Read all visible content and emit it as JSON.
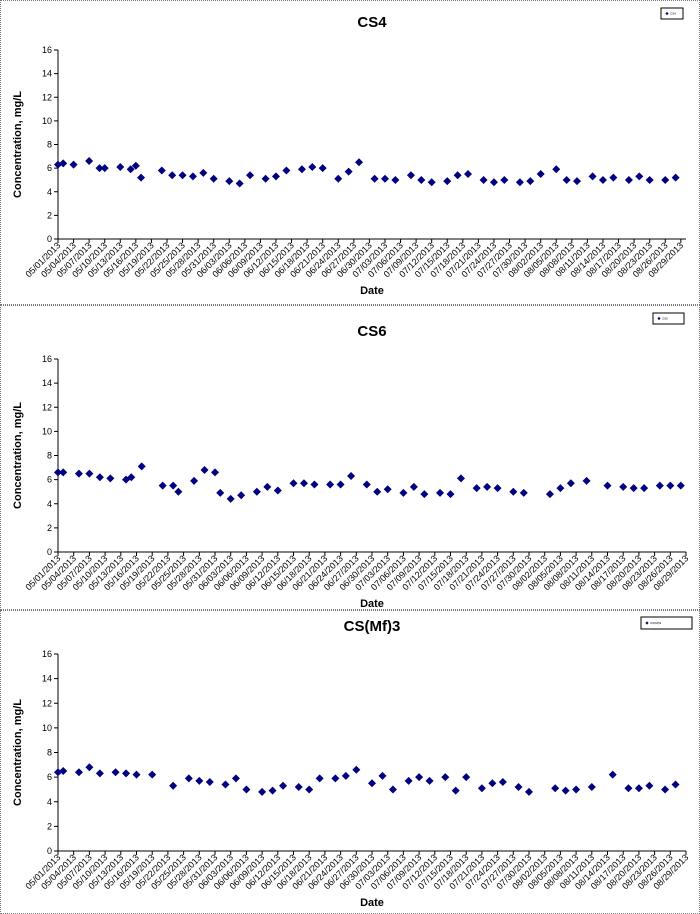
{
  "chart_data": [
    {
      "type": "scatter",
      "title": "CS4",
      "xlabel": "Date",
      "ylabel": "Concentration, mg/L",
      "ylim": [
        0,
        16
      ],
      "yticks": [
        0,
        2,
        4,
        6,
        8,
        10,
        12,
        14,
        16
      ],
      "xlim": [
        "05/01/2013",
        "08/30/2013"
      ],
      "xticks": [
        "05/01/2013",
        "05/04/2013",
        "05/07/2013",
        "05/10/2013",
        "05/13/2013",
        "05/16/2013",
        "05/19/2013",
        "05/22/2013",
        "05/25/2013",
        "05/28/2013",
        "05/31/2013",
        "06/03/2013",
        "06/06/2013",
        "06/09/2013",
        "06/12/2013",
        "06/15/2013",
        "06/18/2013",
        "06/21/2013",
        "06/24/2013",
        "06/27/2013",
        "06/30/2013",
        "07/03/2013",
        "07/06/2013",
        "07/09/2013",
        "07/12/2013",
        "07/15/2013",
        "07/18/2013",
        "07/21/2013",
        "07/24/2013",
        "07/27/2013",
        "07/30/2013",
        "08/02/2013",
        "08/05/2013",
        "08/08/2013",
        "08/11/2013",
        "08/14/2013",
        "08/17/2013",
        "08/20/2013",
        "08/23/2013",
        "08/26/2013",
        "08/29/2013"
      ],
      "legend": "top-right",
      "series": [
        {
          "name": "CS4",
          "color": "#000080",
          "x": [
            "05/01/2013",
            "05/02/2013",
            "05/04/2013",
            "05/07/2013",
            "05/09/2013",
            "05/10/2013",
            "05/13/2013",
            "05/15/2013",
            "05/16/2013",
            "05/17/2013",
            "05/21/2013",
            "05/23/2013",
            "05/25/2013",
            "05/27/2013",
            "05/29/2013",
            "05/31/2013",
            "06/03/2013",
            "06/05/2013",
            "06/07/2013",
            "06/10/2013",
            "06/12/2013",
            "06/14/2013",
            "06/17/2013",
            "06/19/2013",
            "06/21/2013",
            "06/24/2013",
            "06/26/2013",
            "06/28/2013",
            "07/01/2013",
            "07/03/2013",
            "07/05/2013",
            "07/08/2013",
            "07/10/2013",
            "07/12/2013",
            "07/15/2013",
            "07/17/2013",
            "07/19/2013",
            "07/22/2013",
            "07/24/2013",
            "07/26/2013",
            "07/29/2013",
            "07/31/2013",
            "08/02/2013",
            "08/05/2013",
            "08/07/2013",
            "08/09/2013",
            "08/12/2013",
            "08/14/2013",
            "08/16/2013",
            "08/19/2013",
            "08/21/2013",
            "08/23/2013",
            "08/26/2013",
            "08/28/2013"
          ],
          "values": [
            6.3,
            6.4,
            6.3,
            6.6,
            6.0,
            6.0,
            6.1,
            5.9,
            6.2,
            5.2,
            5.8,
            5.4,
            5.4,
            5.3,
            5.6,
            5.1,
            4.9,
            4.7,
            5.4,
            5.1,
            5.3,
            5.8,
            5.9,
            6.1,
            6.0,
            5.1,
            5.7,
            6.5,
            5.1,
            5.1,
            5.0,
            5.4,
            5.0,
            4.8,
            4.9,
            5.4,
            5.5,
            5.0,
            4.8,
            5.0,
            4.8,
            4.9,
            5.5,
            5.9,
            5.0,
            4.9,
            5.3,
            5.0,
            5.2,
            5.0,
            5.3,
            5.0,
            5.0,
            5.2
          ]
        }
      ]
    },
    {
      "type": "scatter",
      "title": "CS6",
      "xlabel": "Date",
      "ylabel": "Concentration, mg/L",
      "ylim": [
        0,
        16
      ],
      "yticks": [
        0,
        2,
        4,
        6,
        8,
        10,
        12,
        14,
        16
      ],
      "xlim": [
        "05/01/2013",
        "08/29/2013"
      ],
      "xticks": [
        "05/01/2013",
        "05/04/2013",
        "05/07/2013",
        "05/10/2013",
        "05/13/2013",
        "05/16/2013",
        "05/19/2013",
        "05/22/2013",
        "05/25/2013",
        "05/28/2013",
        "05/31/2013",
        "06/03/2013",
        "06/06/2013",
        "06/09/2013",
        "06/12/2013",
        "06/15/2013",
        "06/18/2013",
        "06/21/2013",
        "06/24/2013",
        "06/27/2013",
        "06/30/2013",
        "07/03/2013",
        "07/06/2013",
        "07/09/2013",
        "07/12/2013",
        "07/15/2013",
        "07/18/2013",
        "07/21/2013",
        "07/24/2013",
        "07/27/2013",
        "07/30/2013",
        "08/02/2013",
        "08/05/2013",
        "08/08/2013",
        "08/11/2013",
        "08/14/2013",
        "08/17/2013",
        "08/20/2013",
        "08/23/2013",
        "08/26/2013",
        "08/29/2013"
      ],
      "legend": "top-right",
      "series": [
        {
          "name": "CS6",
          "color": "#000080",
          "x": [
            "05/01/2013",
            "05/02/2013",
            "05/05/2013",
            "05/07/2013",
            "05/09/2013",
            "05/11/2013",
            "05/14/2013",
            "05/15/2013",
            "05/17/2013",
            "05/21/2013",
            "05/23/2013",
            "05/24/2013",
            "05/27/2013",
            "05/29/2013",
            "05/31/2013",
            "06/01/2013",
            "06/03/2013",
            "06/05/2013",
            "06/08/2013",
            "06/10/2013",
            "06/12/2013",
            "06/15/2013",
            "06/17/2013",
            "06/19/2013",
            "06/22/2013",
            "06/24/2013",
            "06/26/2013",
            "06/29/2013",
            "07/01/2013",
            "07/03/2013",
            "07/06/2013",
            "07/08/2013",
            "07/10/2013",
            "07/13/2013",
            "07/15/2013",
            "07/17/2013",
            "07/20/2013",
            "07/22/2013",
            "07/24/2013",
            "07/27/2013",
            "07/29/2013",
            "08/03/2013",
            "08/05/2013",
            "08/07/2013",
            "08/10/2013",
            "08/14/2013",
            "08/17/2013",
            "08/19/2013",
            "08/21/2013",
            "08/24/2013",
            "08/26/2013",
            "08/28/2013"
          ],
          "values": [
            6.6,
            6.6,
            6.5,
            6.5,
            6.2,
            6.1,
            6.0,
            6.2,
            7.1,
            5.5,
            5.5,
            5.0,
            5.9,
            6.8,
            6.6,
            4.9,
            4.4,
            4.7,
            5.0,
            5.4,
            5.1,
            5.7,
            5.7,
            5.6,
            5.6,
            5.6,
            6.3,
            5.6,
            5.0,
            5.2,
            4.9,
            5.4,
            4.8,
            4.9,
            4.8,
            6.1,
            5.3,
            5.4,
            5.3,
            5.0,
            4.9,
            4.8,
            5.3,
            5.7,
            5.9,
            5.5,
            5.4,
            5.3,
            5.3,
            5.5,
            5.5,
            5.5
          ]
        }
      ]
    },
    {
      "type": "scatter",
      "title": "CS(Mf)3",
      "xlabel": "Date",
      "ylabel": "Concentration, mg/L",
      "ylim": [
        0,
        16
      ],
      "yticks": [
        0,
        2,
        4,
        6,
        8,
        10,
        12,
        14,
        16
      ],
      "xlim": [
        "05/01/2013",
        "08/29/2013"
      ],
      "xticks": [
        "05/01/2013",
        "05/04/2013",
        "05/07/2013",
        "05/10/2013",
        "05/13/2013",
        "05/16/2013",
        "05/19/2013",
        "05/22/2013",
        "05/25/2013",
        "05/28/2013",
        "05/31/2013",
        "06/03/2013",
        "06/06/2013",
        "06/09/2013",
        "06/12/2013",
        "06/15/2013",
        "06/18/2013",
        "06/21/2013",
        "06/24/2013",
        "06/27/2013",
        "06/30/2013",
        "07/03/2013",
        "07/06/2013",
        "07/09/2013",
        "07/12/2013",
        "07/15/2013",
        "07/18/2013",
        "07/21/2013",
        "07/24/2013",
        "07/27/2013",
        "07/30/2013",
        "08/02/2013",
        "08/05/2013",
        "08/08/2013",
        "08/11/2013",
        "08/14/2013",
        "08/17/2013",
        "08/20/2013",
        "08/23/2013",
        "08/26/2013",
        "08/29/2013"
      ],
      "legend": "top-right",
      "series": [
        {
          "name": "CS(Mf)3",
          "color": "#000080",
          "x": [
            "05/01/2013",
            "05/02/2013",
            "05/05/2013",
            "05/07/2013",
            "05/09/2013",
            "05/12/2013",
            "05/14/2013",
            "05/16/2013",
            "05/19/2013",
            "05/23/2013",
            "05/26/2013",
            "05/28/2013",
            "05/30/2013",
            "06/02/2013",
            "06/04/2013",
            "06/06/2013",
            "06/09/2013",
            "06/11/2013",
            "06/13/2013",
            "06/16/2013",
            "06/18/2013",
            "06/20/2013",
            "06/23/2013",
            "06/25/2013",
            "06/27/2013",
            "06/30/2013",
            "07/02/2013",
            "07/04/2013",
            "07/07/2013",
            "07/09/2013",
            "07/11/2013",
            "07/14/2013",
            "07/16/2013",
            "07/18/2013",
            "07/21/2013",
            "07/23/2013",
            "07/25/2013",
            "07/28/2013",
            "07/30/2013",
            "08/04/2013",
            "08/06/2013",
            "08/08/2013",
            "08/11/2013",
            "08/15/2013",
            "08/18/2013",
            "08/20/2013",
            "08/22/2013",
            "08/25/2013",
            "08/27/2013"
          ],
          "values": [
            6.4,
            6.5,
            6.4,
            6.8,
            6.3,
            6.4,
            6.3,
            6.2,
            6.2,
            5.3,
            5.9,
            5.7,
            5.6,
            5.4,
            5.9,
            5.0,
            4.8,
            4.9,
            5.3,
            5.2,
            5.0,
            5.9,
            5.9,
            6.1,
            6.6,
            5.5,
            6.1,
            5.0,
            5.7,
            6.0,
            5.7,
            6.0,
            4.9,
            6.0,
            5.1,
            5.5,
            5.6,
            5.2,
            4.8,
            5.1,
            4.9,
            5.0,
            5.2,
            6.2,
            5.1,
            5.1,
            5.3,
            5.0,
            5.4
          ]
        }
      ]
    }
  ]
}
